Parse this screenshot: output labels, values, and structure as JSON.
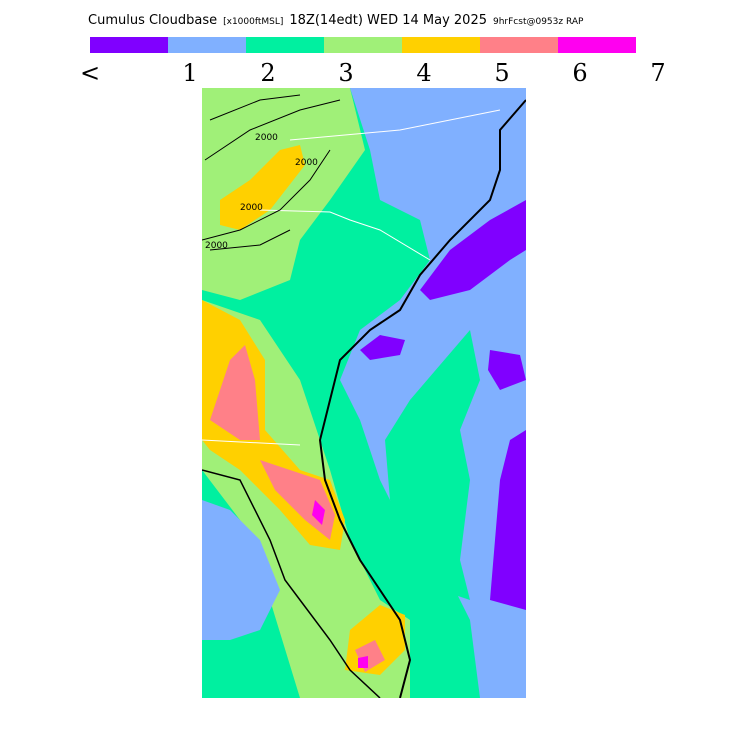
{
  "header": {
    "title": "Cumulus Cloudbase",
    "units": "[x1000ftMSL]",
    "time": "18Z(14edt) WED 14 May 2025",
    "forecast": "9hrFcst@0953z RAP"
  },
  "legend": {
    "colors": [
      "#8000ff",
      "#80b0ff",
      "#00f0a0",
      "#a0f078",
      "#ffd000",
      "#ff8088",
      "#ff00f0"
    ],
    "labels": [
      "<",
      "1",
      "2",
      "3",
      "4",
      "5",
      "6",
      "7"
    ]
  },
  "contour_labels": [
    "2000",
    "2000",
    "2000",
    "2000"
  ]
}
